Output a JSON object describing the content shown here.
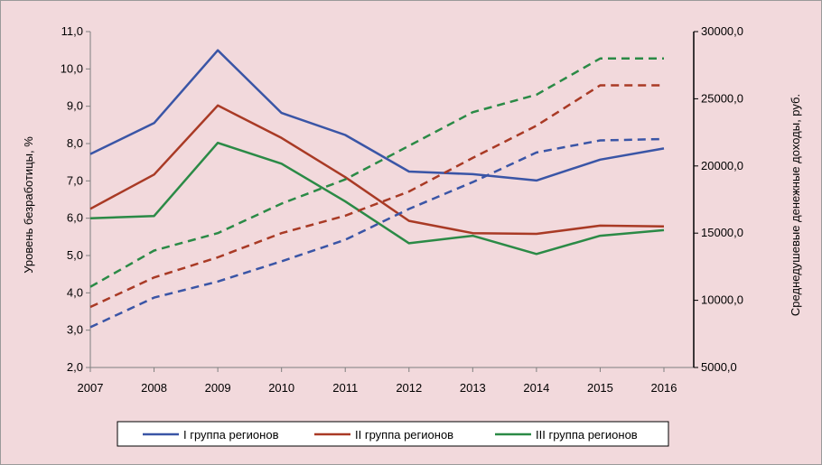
{
  "chart_data": {
    "type": "line",
    "title": "",
    "xlabel": "",
    "ylabel": "Уровень безработицы, %",
    "y2label": "Среднедушевые денежные доходы, руб.",
    "categories": [
      "2007",
      "2008",
      "2009",
      "2010",
      "2011",
      "2012",
      "2013",
      "2014",
      "2015",
      "2016"
    ],
    "ylim": [
      2.0,
      11.0
    ],
    "y2lim": [
      5000,
      30000
    ],
    "yticks": [
      "2,0",
      "3,0",
      "4,0",
      "5,0",
      "6,0",
      "7,0",
      "8,0",
      "9,0",
      "10,0",
      "11,0"
    ],
    "y2ticks": [
      "5000,0",
      "10000,0",
      "15000,0",
      "20000,0",
      "25000,0",
      "30000,0"
    ],
    "legend": {
      "position": "bottom",
      "entries": [
        "I группа регионов",
        "II группа регионов",
        "III группа регионов"
      ]
    },
    "series": [
      {
        "name": "I группа регионов",
        "axis": "left",
        "style": "solid",
        "color": "#3a55a6",
        "values": [
          7.72,
          8.55,
          10.5,
          8.82,
          8.23,
          7.25,
          7.18,
          7.01,
          7.57,
          7.87
        ]
      },
      {
        "name": "II группа регионов",
        "axis": "left",
        "style": "solid",
        "color": "#a93a25",
        "values": [
          6.25,
          7.17,
          9.02,
          8.15,
          7.1,
          5.93,
          5.6,
          5.58,
          5.8,
          5.78
        ]
      },
      {
        "name": "III группа регионов",
        "axis": "left",
        "style": "solid",
        "color": "#2b8a46",
        "values": [
          6.0,
          6.06,
          8.02,
          7.46,
          6.45,
          5.33,
          5.53,
          5.04,
          5.53,
          5.68
        ]
      },
      {
        "name": "I группа регионов",
        "axis": "right",
        "style": "dashed",
        "color": "#3a55a6",
        "values": [
          8000,
          10200,
          11400,
          12900,
          14500,
          16800,
          18800,
          21000,
          21900,
          22000
        ]
      },
      {
        "name": "II группа регионов",
        "axis": "right",
        "style": "dashed",
        "color": "#a93a25",
        "values": [
          9500,
          11700,
          13200,
          15000,
          16300,
          18100,
          20600,
          23000,
          26000,
          26000
        ]
      },
      {
        "name": "III группа регионов",
        "axis": "right",
        "style": "dashed",
        "color": "#2b8a46",
        "values": [
          11000,
          13700,
          15000,
          17200,
          19000,
          21500,
          24000,
          25300,
          28000,
          28000
        ]
      }
    ]
  }
}
